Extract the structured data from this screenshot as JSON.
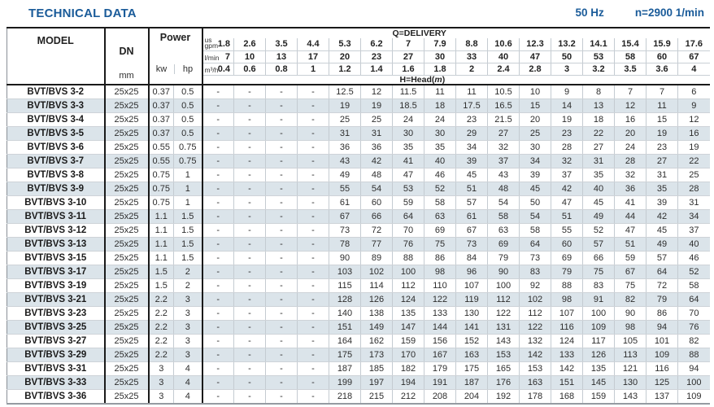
{
  "header": {
    "title": "TECHNICAL DATA",
    "frequency": "50 Hz",
    "speed": "n=2900 1/min"
  },
  "colors": {
    "accent_blue": "#1a5b99",
    "row_alt": "#dbe4ea"
  },
  "table": {
    "column_headers": {
      "model": "MODEL",
      "dn": "DN",
      "dn_unit": "mm",
      "power": "Power",
      "kw": "kw",
      "hp": "hp",
      "delivery": "Q=DELIVERY",
      "head_prefix": "H=Head(",
      "head_unit": "m",
      "head_suffix": ")"
    },
    "delivery_units": {
      "gpm_line1": "us",
      "gpm_line2": "gpm",
      "lmin": "l/min",
      "m3h": "m³/h"
    },
    "delivery": {
      "gpm": [
        "1.8",
        "2.6",
        "3.5",
        "4.4",
        "5.3",
        "6.2",
        "7",
        "7.9",
        "8.8",
        "10.6",
        "12.3",
        "13.2",
        "14.1",
        "15.4",
        "15.9",
        "17.6"
      ],
      "lmin": [
        "7",
        "10",
        "13",
        "17",
        "20",
        "23",
        "27",
        "30",
        "33",
        "40",
        "47",
        "50",
        "53",
        "58",
        "60",
        "67"
      ],
      "m3h": [
        "0.4",
        "0.6",
        "0.8",
        "1",
        "1.2",
        "1.4",
        "1.6",
        "1.8",
        "2",
        "2.4",
        "2.8",
        "3",
        "3.2",
        "3.5",
        "3.6",
        "4"
      ]
    },
    "rows": [
      {
        "model": "BVT/BVS 3-2",
        "dn": "25x25",
        "kw": "0.37",
        "hp": "0.5",
        "head": [
          "-",
          "-",
          "-",
          "-",
          "12.5",
          "12",
          "11.5",
          "11",
          "11",
          "10.5",
          "10",
          "9",
          "8",
          "7",
          "7",
          "6"
        ]
      },
      {
        "model": "BVT/BVS 3-3",
        "dn": "25x25",
        "kw": "0.37",
        "hp": "0.5",
        "head": [
          "-",
          "-",
          "-",
          "-",
          "19",
          "19",
          "18.5",
          "18",
          "17.5",
          "16.5",
          "15",
          "14",
          "13",
          "12",
          "11",
          "9"
        ]
      },
      {
        "model": "BVT/BVS 3-4",
        "dn": "25x25",
        "kw": "0.37",
        "hp": "0.5",
        "head": [
          "-",
          "-",
          "-",
          "-",
          "25",
          "25",
          "24",
          "24",
          "23",
          "21.5",
          "20",
          "19",
          "18",
          "16",
          "15",
          "12"
        ]
      },
      {
        "model": "BVT/BVS 3-5",
        "dn": "25x25",
        "kw": "0.37",
        "hp": "0.5",
        "head": [
          "-",
          "-",
          "-",
          "-",
          "31",
          "31",
          "30",
          "30",
          "29",
          "27",
          "25",
          "23",
          "22",
          "20",
          "19",
          "16"
        ]
      },
      {
        "model": "BVT/BVS 3-6",
        "dn": "25x25",
        "kw": "0.55",
        "hp": "0.75",
        "head": [
          "-",
          "-",
          "-",
          "-",
          "36",
          "36",
          "35",
          "35",
          "34",
          "32",
          "30",
          "28",
          "27",
          "24",
          "23",
          "19"
        ]
      },
      {
        "model": "BVT/BVS 3-7",
        "dn": "25x25",
        "kw": "0.55",
        "hp": "0.75",
        "head": [
          "-",
          "-",
          "-",
          "-",
          "43",
          "42",
          "41",
          "40",
          "39",
          "37",
          "34",
          "32",
          "31",
          "28",
          "27",
          "22"
        ]
      },
      {
        "model": "BVT/BVS 3-8",
        "dn": "25x25",
        "kw": "0.75",
        "hp": "1",
        "head": [
          "-",
          "-",
          "-",
          "-",
          "49",
          "48",
          "47",
          "46",
          "45",
          "43",
          "39",
          "37",
          "35",
          "32",
          "31",
          "25"
        ]
      },
      {
        "model": "BVT/BVS 3-9",
        "dn": "25x25",
        "kw": "0.75",
        "hp": "1",
        "head": [
          "-",
          "-",
          "-",
          "-",
          "55",
          "54",
          "53",
          "52",
          "51",
          "48",
          "45",
          "42",
          "40",
          "36",
          "35",
          "28"
        ]
      },
      {
        "model": "BVT/BVS 3-10",
        "dn": "25x25",
        "kw": "0.75",
        "hp": "1",
        "head": [
          "-",
          "-",
          "-",
          "-",
          "61",
          "60",
          "59",
          "58",
          "57",
          "54",
          "50",
          "47",
          "45",
          "41",
          "39",
          "31"
        ]
      },
      {
        "model": "BVT/BVS 3-11",
        "dn": "25x25",
        "kw": "1.1",
        "hp": "1.5",
        "head": [
          "-",
          "-",
          "-",
          "-",
          "67",
          "66",
          "64",
          "63",
          "61",
          "58",
          "54",
          "51",
          "49",
          "44",
          "42",
          "34"
        ]
      },
      {
        "model": "BVT/BVS 3-12",
        "dn": "25x25",
        "kw": "1.1",
        "hp": "1.5",
        "head": [
          "-",
          "-",
          "-",
          "-",
          "73",
          "72",
          "70",
          "69",
          "67",
          "63",
          "58",
          "55",
          "52",
          "47",
          "45",
          "37"
        ]
      },
      {
        "model": "BVT/BVS 3-13",
        "dn": "25x25",
        "kw": "1.1",
        "hp": "1.5",
        "head": [
          "-",
          "-",
          "-",
          "-",
          "78",
          "77",
          "76",
          "75",
          "73",
          "69",
          "64",
          "60",
          "57",
          "51",
          "49",
          "40"
        ]
      },
      {
        "model": "BVT/BVS 3-15",
        "dn": "25x25",
        "kw": "1.1",
        "hp": "1.5",
        "head": [
          "-",
          "-",
          "-",
          "-",
          "90",
          "89",
          "88",
          "86",
          "84",
          "79",
          "73",
          "69",
          "66",
          "59",
          "57",
          "46"
        ]
      },
      {
        "model": "BVT/BVS 3-17",
        "dn": "25x25",
        "kw": "1.5",
        "hp": "2",
        "head": [
          "-",
          "-",
          "-",
          "-",
          "103",
          "102",
          "100",
          "98",
          "96",
          "90",
          "83",
          "79",
          "75",
          "67",
          "64",
          "52"
        ]
      },
      {
        "model": "BVT/BVS 3-19",
        "dn": "25x25",
        "kw": "1.5",
        "hp": "2",
        "head": [
          "-",
          "-",
          "-",
          "-",
          "115",
          "114",
          "112",
          "110",
          "107",
          "100",
          "92",
          "88",
          "83",
          "75",
          "72",
          "58"
        ]
      },
      {
        "model": "BVT/BVS 3-21",
        "dn": "25x25",
        "kw": "2.2",
        "hp": "3",
        "head": [
          "-",
          "-",
          "-",
          "-",
          "128",
          "126",
          "124",
          "122",
          "119",
          "112",
          "102",
          "98",
          "91",
          "82",
          "79",
          "64"
        ]
      },
      {
        "model": "BVT/BVS 3-23",
        "dn": "25x25",
        "kw": "2.2",
        "hp": "3",
        "head": [
          "-",
          "-",
          "-",
          "-",
          "140",
          "138",
          "135",
          "133",
          "130",
          "122",
          "112",
          "107",
          "100",
          "90",
          "86",
          "70"
        ]
      },
      {
        "model": "BVT/BVS 3-25",
        "dn": "25x25",
        "kw": "2.2",
        "hp": "3",
        "head": [
          "-",
          "-",
          "-",
          "-",
          "151",
          "149",
          "147",
          "144",
          "141",
          "131",
          "122",
          "116",
          "109",
          "98",
          "94",
          "76"
        ]
      },
      {
        "model": "BVT/BVS 3-27",
        "dn": "25x25",
        "kw": "2.2",
        "hp": "3",
        "head": [
          "-",
          "-",
          "-",
          "-",
          "164",
          "162",
          "159",
          "156",
          "152",
          "143",
          "132",
          "124",
          "117",
          "105",
          "101",
          "82"
        ]
      },
      {
        "model": "BVT/BVS 3-29",
        "dn": "25x25",
        "kw": "2.2",
        "hp": "3",
        "head": [
          "-",
          "-",
          "-",
          "-",
          "175",
          "173",
          "170",
          "167",
          "163",
          "153",
          "142",
          "133",
          "126",
          "113",
          "109",
          "88"
        ]
      },
      {
        "model": "BVT/BVS 3-31",
        "dn": "25x25",
        "kw": "3",
        "hp": "4",
        "head": [
          "-",
          "-",
          "-",
          "-",
          "187",
          "185",
          "182",
          "179",
          "175",
          "165",
          "153",
          "142",
          "135",
          "121",
          "116",
          "94"
        ]
      },
      {
        "model": "BVT/BVS 3-33",
        "dn": "25x25",
        "kw": "3",
        "hp": "4",
        "head": [
          "-",
          "-",
          "-",
          "-",
          "199",
          "197",
          "194",
          "191",
          "187",
          "176",
          "163",
          "151",
          "145",
          "130",
          "125",
          "100"
        ]
      },
      {
        "model": "BVT/BVS 3-36",
        "dn": "25x25",
        "kw": "3",
        "hp": "4",
        "head": [
          "-",
          "-",
          "-",
          "-",
          "218",
          "215",
          "212",
          "208",
          "204",
          "192",
          "178",
          "168",
          "159",
          "143",
          "137",
          "109"
        ]
      }
    ]
  }
}
